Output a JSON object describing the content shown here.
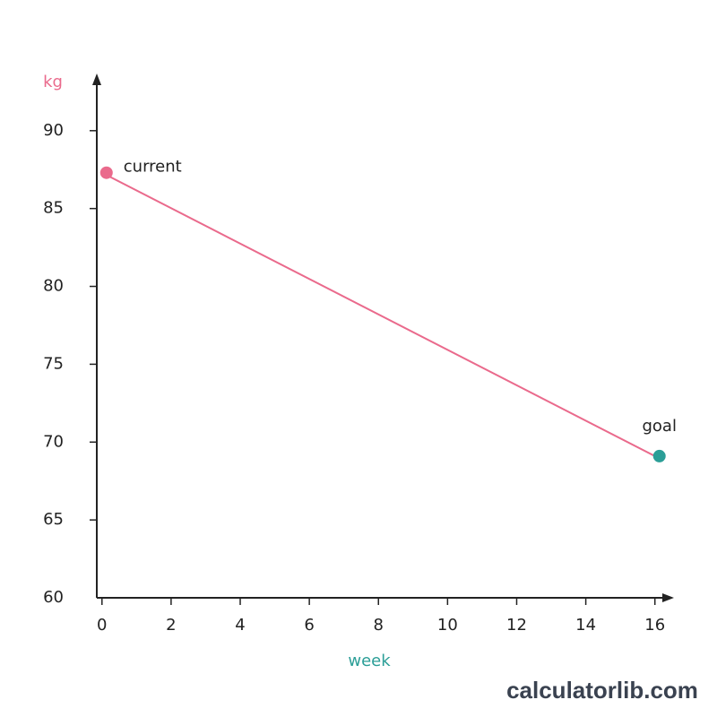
{
  "chart_data": {
    "type": "line",
    "y_label": "kg",
    "x_label": "week",
    "x": [
      0,
      16
    ],
    "values": [
      87.3,
      69.1
    ],
    "point_labels": [
      "current",
      "goal"
    ],
    "point_colors": [
      "#ea6a8c",
      "#2b9e97"
    ],
    "color": "#ea6a8c",
    "xlim": [
      -0.15,
      16.5
    ],
    "xticks": [
      0,
      2,
      4,
      6,
      8,
      10,
      12,
      14,
      16
    ],
    "ylim": [
      60,
      93.5
    ],
    "yticks": [
      60,
      65,
      70,
      75,
      80,
      85,
      90
    ]
  },
  "watermark": "calculatorlib.com"
}
